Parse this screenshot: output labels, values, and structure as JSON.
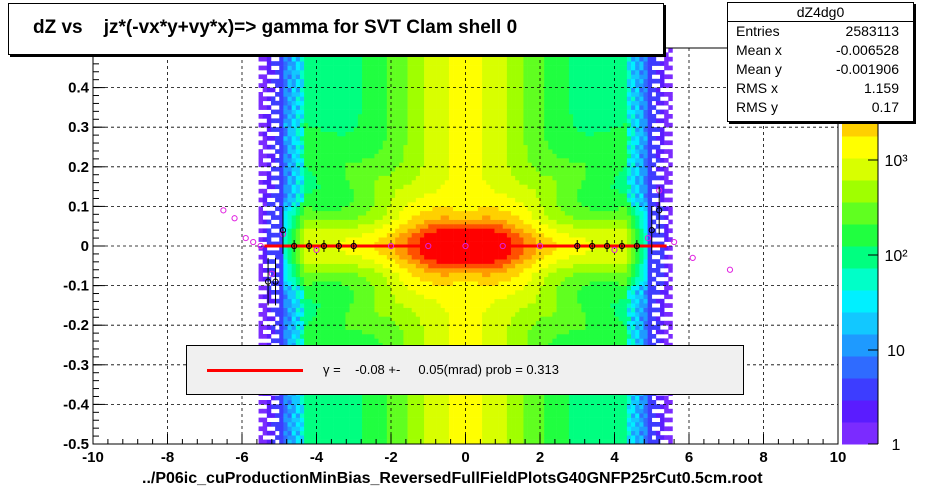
{
  "title": "dZ vs    jz*(-vx*y+vy*x)=> gamma for SVT Clam shell 0",
  "stats": {
    "name": "dZ4dg0",
    "rows": [
      {
        "key": "Entries",
        "value": "2583113"
      },
      {
        "key": "Mean x",
        "value": "-0.006528"
      },
      {
        "key": "Mean y",
        "value": "-0.001906"
      },
      {
        "key": "RMS x",
        "value": "1.159"
      },
      {
        "key": "RMS y",
        "value": "0.17"
      }
    ]
  },
  "legend": {
    "text": "γ =    -0.08 +-     0.05(mrad) prob = 0.313",
    "line_color": "#ff0000"
  },
  "footer": "../P06ic_cuProductionMinBias_ReversedFullFieldPlotsG40GNFP25rCut0.5cm.root",
  "chart_data": {
    "type": "heatmap",
    "xlim": [
      -10,
      10
    ],
    "ylim": [
      -0.5,
      0.5
    ],
    "x_ticks": [
      "-10",
      "-8",
      "-6",
      "-4",
      "-2",
      "0",
      "2",
      "4",
      "6",
      "8",
      "10"
    ],
    "y_ticks": [
      "-0.5",
      "-0.4",
      "-0.3",
      "-0.2",
      "-0.1",
      "0",
      "0.1",
      "0.2",
      "0.3",
      "0.4"
    ],
    "z_scale": "log",
    "z_ticks": [
      "1",
      "10",
      "10²",
      "10³",
      "10⁴"
    ],
    "grid": true,
    "fit_line": {
      "x_range": [
        -5.4,
        5.4
      ],
      "y": 0.0,
      "color": "#ff0000"
    },
    "profile_black": [
      {
        "x": -5.3,
        "y": -0.09
      },
      {
        "x": -5.1,
        "y": -0.09
      },
      {
        "x": -4.9,
        "y": 0.04
      },
      {
        "x": -4.6,
        "y": 0.0
      },
      {
        "x": -4.2,
        "y": 0.0
      },
      {
        "x": -3.8,
        "y": 0.0
      },
      {
        "x": -3.4,
        "y": 0.0
      },
      {
        "x": -3.0,
        "y": 0.0
      },
      {
        "x": 3.0,
        "y": 0.0
      },
      {
        "x": 3.4,
        "y": 0.0
      },
      {
        "x": 3.8,
        "y": 0.0
      },
      {
        "x": 4.2,
        "y": 0.0
      },
      {
        "x": 4.6,
        "y": 0.0
      },
      {
        "x": 5.0,
        "y": 0.04
      },
      {
        "x": 5.2,
        "y": 0.09
      }
    ],
    "profile_magenta": [
      {
        "x": -6.5,
        "y": 0.09
      },
      {
        "x": -6.2,
        "y": 0.07
      },
      {
        "x": -5.9,
        "y": 0.02
      },
      {
        "x": -5.7,
        "y": 0.01
      },
      {
        "x": -5.5,
        "y": 0.0
      },
      {
        "x": -5.2,
        "y": -0.07
      },
      {
        "x": -4.9,
        "y": 0.03
      },
      {
        "x": -4.0,
        "y": -0.01
      },
      {
        "x": -3.0,
        "y": 0.0
      },
      {
        "x": -2.0,
        "y": 0.0
      },
      {
        "x": -1.0,
        "y": 0.0
      },
      {
        "x": 0.0,
        "y": 0.0
      },
      {
        "x": 1.0,
        "y": 0.0
      },
      {
        "x": 2.0,
        "y": 0.0
      },
      {
        "x": 3.0,
        "y": 0.0
      },
      {
        "x": 4.0,
        "y": -0.01
      },
      {
        "x": 4.9,
        "y": 0.02
      },
      {
        "x": 5.2,
        "y": 0.14
      },
      {
        "x": 5.6,
        "y": 0.01
      },
      {
        "x": 6.1,
        "y": -0.03
      },
      {
        "x": 7.1,
        "y": -0.06
      }
    ]
  }
}
